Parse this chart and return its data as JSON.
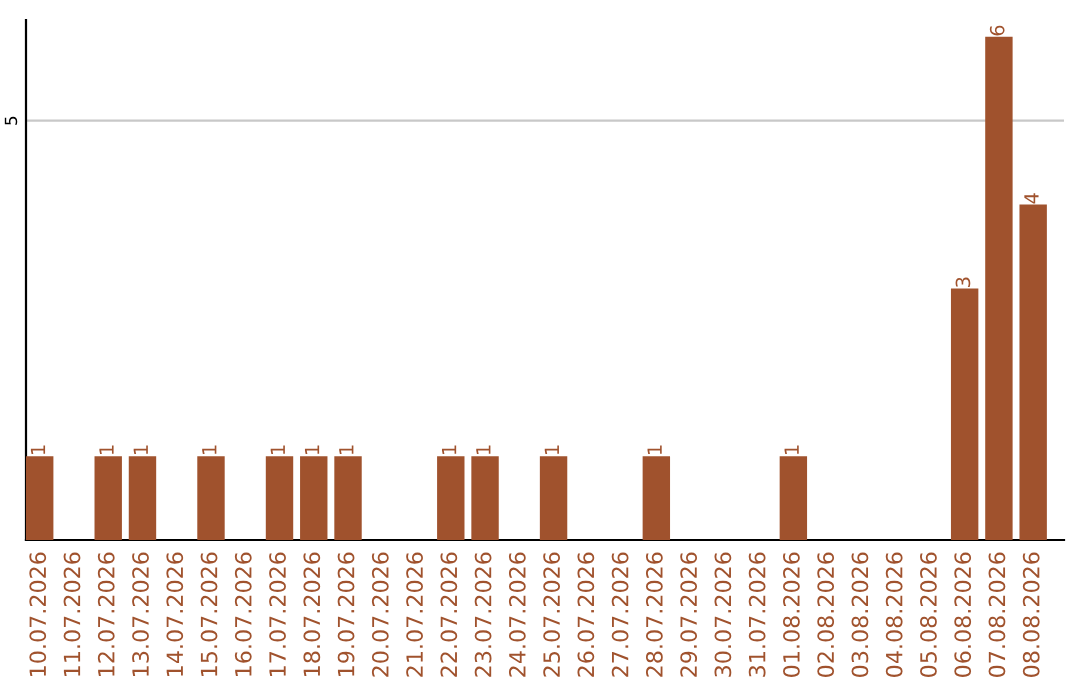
{
  "chart_data": {
    "type": "bar",
    "categories": [
      "10.07.2026",
      "11.07.2026",
      "12.07.2026",
      "13.07.2026",
      "14.07.2026",
      "15.07.2026",
      "16.07.2026",
      "17.07.2026",
      "18.07.2026",
      "19.07.2026",
      "20.07.2026",
      "21.07.2026",
      "22.07.2026",
      "23.07.2026",
      "24.07.2026",
      "25.07.2026",
      "26.07.2026",
      "27.07.2026",
      "28.07.2026",
      "29.07.2026",
      "30.07.2026",
      "31.07.2026",
      "01.08.2026",
      "02.08.2026",
      "03.08.2026",
      "04.08.2026",
      "05.08.2026",
      "06.08.2026",
      "07.08.2026",
      "08.08.2026"
    ],
    "values": [
      1,
      0,
      1,
      1,
      0,
      1,
      0,
      1,
      1,
      1,
      0,
      0,
      1,
      1,
      0,
      1,
      0,
      0,
      1,
      0,
      0,
      0,
      1,
      0,
      0,
      0,
      0,
      3,
      6,
      4
    ],
    "value_labels": [
      "1",
      null,
      "1",
      "1",
      null,
      "1",
      null,
      "1",
      "1",
      "1",
      null,
      null,
      "1",
      "1",
      null,
      "1",
      null,
      null,
      "1",
      null,
      null,
      null,
      "1",
      null,
      null,
      null,
      null,
      "3",
      "6",
      "4"
    ],
    "color": "#a0522d",
    "ylim": [
      0,
      6.2
    ],
    "yticks": [
      5
    ],
    "grid": "y",
    "legend": false
  }
}
